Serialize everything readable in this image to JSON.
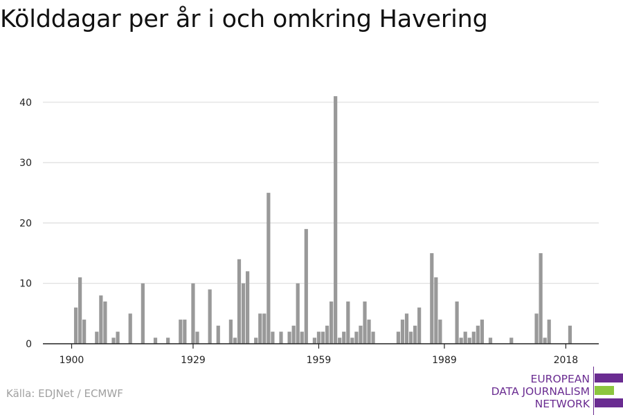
{
  "title": "Kölddagar per år i och omkring Havering",
  "source": "Källa: EDJNet / ECMWF",
  "logo": {
    "lines": [
      "EUROPEAN",
      "DATA JOURNALISM",
      "NETWORK"
    ],
    "colors": {
      "purple": "#6a2c91",
      "green": "#8cc63f"
    }
  },
  "colors": {
    "bar": "#999999",
    "grid": "#dddddd",
    "axis": "#222222",
    "tick_text": "#222222"
  },
  "chart_data": {
    "type": "bar",
    "title": "Kölddagar per år i och omkring Havering",
    "xlabel": "",
    "ylabel": "",
    "x_range": [
      1900,
      2019
    ],
    "ylim": [
      0,
      42
    ],
    "x_ticks": [
      1900,
      1929,
      1959,
      1989,
      2018
    ],
    "y_ticks": [
      0,
      10,
      20,
      30,
      40
    ],
    "grid": "horizontal",
    "legend": "none",
    "years": [
      1900,
      1901,
      1902,
      1903,
      1904,
      1905,
      1906,
      1907,
      1908,
      1909,
      1910,
      1911,
      1912,
      1913,
      1914,
      1915,
      1916,
      1917,
      1918,
      1919,
      1920,
      1921,
      1922,
      1923,
      1924,
      1925,
      1926,
      1927,
      1928,
      1929,
      1930,
      1931,
      1932,
      1933,
      1934,
      1935,
      1936,
      1937,
      1938,
      1939,
      1940,
      1941,
      1942,
      1943,
      1944,
      1945,
      1946,
      1947,
      1948,
      1949,
      1950,
      1951,
      1952,
      1953,
      1954,
      1955,
      1956,
      1957,
      1958,
      1959,
      1960,
      1961,
      1962,
      1963,
      1964,
      1965,
      1966,
      1967,
      1968,
      1969,
      1970,
      1971,
      1972,
      1973,
      1974,
      1975,
      1976,
      1977,
      1978,
      1979,
      1980,
      1981,
      1982,
      1983,
      1984,
      1985,
      1986,
      1987,
      1988,
      1989,
      1990,
      1991,
      1992,
      1993,
      1994,
      1995,
      1996,
      1997,
      1998,
      1999,
      2000,
      2001,
      2002,
      2003,
      2004,
      2005,
      2006,
      2007,
      2008,
      2009,
      2010,
      2011,
      2012,
      2013,
      2014,
      2015,
      2016,
      2017,
      2018,
      2019
    ],
    "values": [
      0,
      6,
      11,
      4,
      0,
      0,
      2,
      8,
      7,
      0,
      1,
      2,
      0,
      0,
      5,
      0,
      0,
      10,
      0,
      0,
      1,
      0,
      0,
      1,
      0,
      0,
      4,
      4,
      0,
      10,
      2,
      0,
      0,
      9,
      0,
      3,
      0,
      0,
      4,
      1,
      14,
      10,
      12,
      0,
      1,
      5,
      5,
      25,
      2,
      0,
      2,
      0,
      2,
      3,
      10,
      2,
      19,
      0,
      1,
      2,
      2,
      3,
      7,
      41,
      1,
      2,
      7,
      1,
      2,
      3,
      7,
      4,
      2,
      0,
      0,
      0,
      0,
      0,
      2,
      4,
      5,
      2,
      3,
      6,
      0,
      0,
      15,
      11,
      4,
      0,
      0,
      0,
      7,
      1,
      2,
      1,
      2,
      3,
      4,
      0,
      1,
      0,
      0,
      0,
      0,
      1,
      0,
      0,
      0,
      0,
      0,
      5,
      15,
      1,
      4,
      0,
      0,
      0,
      0,
      3
    ]
  }
}
